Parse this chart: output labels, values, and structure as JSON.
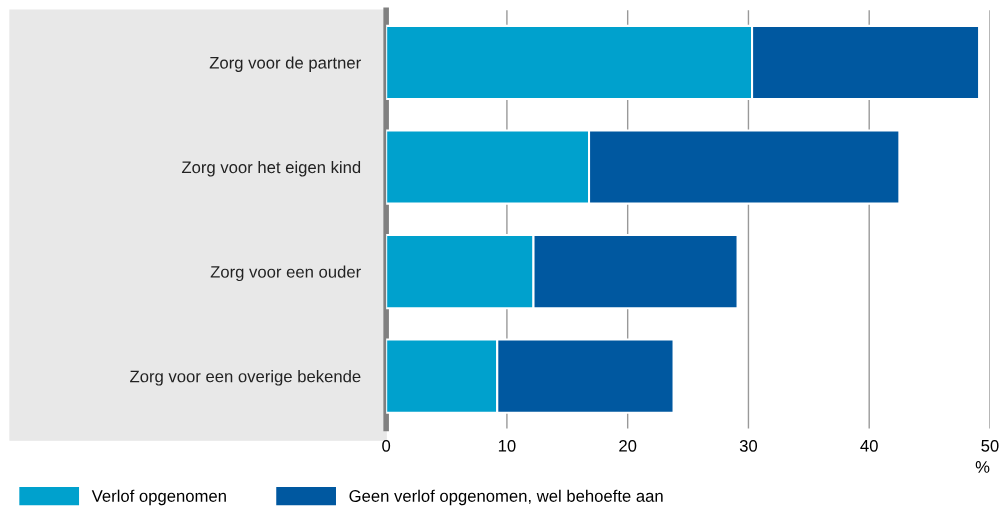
{
  "chart_data": {
    "type": "bar",
    "orientation": "horizontal",
    "stacked": true,
    "categories": [
      "Zorg voor de partner",
      "Zorg voor het eigen kind",
      "Zorg voor een ouder",
      "Zorg voor een overige bekende"
    ],
    "series": [
      {
        "name": "Verlof opgenomen",
        "color": "#00a1cd",
        "values": [
          30.3,
          16.8,
          12.2,
          9.2
        ]
      },
      {
        "name": "Geen verlof opgenomen, wel behoefte aan",
        "color": "#0058a0",
        "values": [
          18.8,
          25.7,
          16.9,
          14.6
        ]
      }
    ],
    "xlabel": "%",
    "xlim": [
      0,
      50
    ],
    "xticks": [
      0,
      10,
      20,
      30,
      40,
      50
    ],
    "grid": "x",
    "legend": "bottom"
  }
}
